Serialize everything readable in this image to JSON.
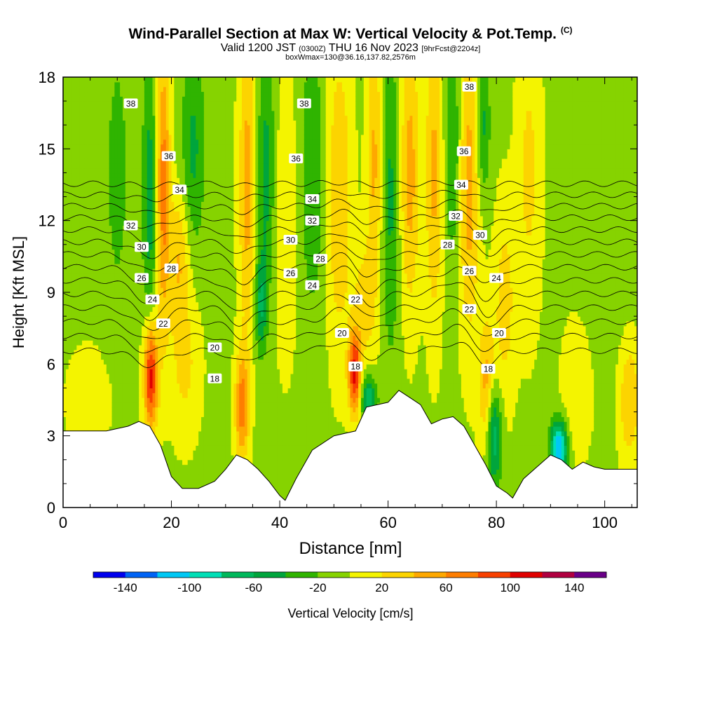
{
  "title": {
    "main": "Wind-Parallel Section at Max W: Vertical Velocity & Pot.Temp.",
    "main_units": "(C)",
    "valid_prefix": "Valid 1200 JST",
    "valid_utc": "(0300Z)",
    "valid_suffix": "THU 16 Nov 2023",
    "forecast": "[9hrFcst@2204z]",
    "box": "boxWmax=130@36.16,137.82,2576m"
  },
  "chart_data": {
    "type": "heatmap",
    "xlabel": "Distance [nm]",
    "ylabel": "Height [Kft MSL]",
    "xlim": [
      0,
      106
    ],
    "ylim": [
      0,
      18
    ],
    "x_ticks": [
      0,
      20,
      40,
      60,
      80,
      100
    ],
    "y_ticks": [
      0,
      3,
      6,
      9,
      12,
      15,
      18
    ],
    "colorbar": {
      "label": "Vertical Velocity [cm/s]",
      "tick_labels": [
        "-140",
        "-100",
        "-60",
        "-20",
        "20",
        "60",
        "100",
        "140"
      ],
      "bins": [
        -160,
        -140,
        -120,
        -100,
        -80,
        -60,
        -40,
        -20,
        0,
        20,
        40,
        60,
        80,
        100,
        120,
        140,
        160
      ],
      "colors": [
        "#0000ee",
        "#0063f5",
        "#00c8f5",
        "#00dfb6",
        "#00b85b",
        "#00a53c",
        "#2fb400",
        "#86d300",
        "#f4f400",
        "#fcd400",
        "#fea800",
        "#fe7d00",
        "#f84000",
        "#e00000",
        "#b00040",
        "#6a0088"
      ]
    },
    "terrain_kft": [
      [
        0,
        3.2
      ],
      [
        4,
        3.2
      ],
      [
        8,
        3.2
      ],
      [
        12,
        3.4
      ],
      [
        14,
        3.6
      ],
      [
        16,
        3.4
      ],
      [
        18,
        2.6
      ],
      [
        20,
        1.3
      ],
      [
        22,
        0.8
      ],
      [
        25,
        0.8
      ],
      [
        28,
        1.1
      ],
      [
        30,
        1.6
      ],
      [
        32,
        2.2
      ],
      [
        34,
        2.0
      ],
      [
        36,
        1.6
      ],
      [
        38,
        1.1
      ],
      [
        40,
        0.5
      ],
      [
        41,
        0.3
      ],
      [
        43,
        1.2
      ],
      [
        46,
        2.4
      ],
      [
        50,
        3.0
      ],
      [
        54,
        3.2
      ],
      [
        56,
        4.2
      ],
      [
        60,
        4.4
      ],
      [
        62,
        4.9
      ],
      [
        64,
        4.6
      ],
      [
        66,
        4.3
      ],
      [
        68,
        3.5
      ],
      [
        70,
        3.7
      ],
      [
        72,
        3.8
      ],
      [
        74,
        3.4
      ],
      [
        76,
        2.6
      ],
      [
        78,
        1.8
      ],
      [
        80,
        0.9
      ],
      [
        82,
        0.6
      ],
      [
        83,
        0.4
      ],
      [
        85,
        1.2
      ],
      [
        88,
        1.8
      ],
      [
        90,
        2.2
      ],
      [
        92,
        2.0
      ],
      [
        94,
        1.6
      ],
      [
        96,
        1.9
      ],
      [
        98,
        1.7
      ],
      [
        100,
        1.6
      ],
      [
        102,
        1.6
      ],
      [
        106,
        1.6
      ]
    ],
    "w_background_cm_s": -5,
    "w_features": [
      {
        "x": 16.2,
        "z": 5.5,
        "sx": 0.9,
        "sz": 1.6,
        "amp": 120
      },
      {
        "x": 18.5,
        "z": 13.5,
        "sx": 0.9,
        "sz": 4.2,
        "amp": 75
      },
      {
        "x": 16.0,
        "z": 13.0,
        "sx": 0.9,
        "sz": 4.5,
        "amp": -45
      },
      {
        "x": 21.5,
        "z": 10.5,
        "sx": 1.3,
        "sz": 2.0,
        "amp": 45
      },
      {
        "x": 22.5,
        "z": 6.0,
        "sx": 2.0,
        "sz": 2.2,
        "amp": 30
      },
      {
        "x": 24.0,
        "z": 15.0,
        "sx": 1.5,
        "sz": 3.0,
        "amp": -40
      },
      {
        "x": 33.0,
        "z": 4.2,
        "sx": 0.9,
        "sz": 1.6,
        "amp": 75
      },
      {
        "x": 34.0,
        "z": 13.5,
        "sx": 1.1,
        "sz": 4.5,
        "amp": 55
      },
      {
        "x": 37.5,
        "z": 14.0,
        "sx": 1.2,
        "sz": 3.5,
        "amp": -45
      },
      {
        "x": 36.5,
        "z": 8.5,
        "sx": 0.8,
        "sz": 1.4,
        "amp": -55
      },
      {
        "x": 41.0,
        "z": 12.0,
        "sx": 1.6,
        "sz": 4.0,
        "amp": 25
      },
      {
        "x": 46.0,
        "z": 14.0,
        "sx": 1.5,
        "sz": 4.0,
        "amp": -35
      },
      {
        "x": 51.0,
        "z": 13.0,
        "sx": 1.6,
        "sz": 4.5,
        "amp": 45
      },
      {
        "x": 53.8,
        "z": 5.6,
        "sx": 0.8,
        "sz": 1.2,
        "amp": 110
      },
      {
        "x": 55.5,
        "z": 8.5,
        "sx": 1.4,
        "sz": 1.8,
        "amp": 35
      },
      {
        "x": 56.5,
        "z": 4.5,
        "sx": 1.0,
        "sz": 0.7,
        "amp": -75
      },
      {
        "x": 57.5,
        "z": 14.5,
        "sx": 1.0,
        "sz": 4.0,
        "amp": 50
      },
      {
        "x": 60.5,
        "z": 13.0,
        "sx": 1.2,
        "sz": 4.5,
        "amp": -40
      },
      {
        "x": 64.0,
        "z": 14.0,
        "sx": 1.3,
        "sz": 4.0,
        "amp": 55
      },
      {
        "x": 68.5,
        "z": 14.0,
        "sx": 1.1,
        "sz": 4.5,
        "amp": 50
      },
      {
        "x": 72.0,
        "z": 15.0,
        "sx": 1.0,
        "sz": 3.5,
        "amp": -40
      },
      {
        "x": 75.0,
        "z": 13.5,
        "sx": 1.4,
        "sz": 4.5,
        "amp": 55
      },
      {
        "x": 77.5,
        "z": 16.0,
        "sx": 0.9,
        "sz": 2.2,
        "amp": -45
      },
      {
        "x": 79.5,
        "z": 3.0,
        "sx": 1.0,
        "sz": 1.5,
        "amp": -75
      },
      {
        "x": 78.2,
        "z": 5.0,
        "sx": 1.0,
        "sz": 2.0,
        "amp": 55
      },
      {
        "x": 81.5,
        "z": 8.5,
        "sx": 1.4,
        "sz": 3.0,
        "amp": 35
      },
      {
        "x": 86.0,
        "z": 14.0,
        "sx": 1.6,
        "sz": 4.5,
        "amp": 30
      },
      {
        "x": 91.5,
        "z": 2.5,
        "sx": 1.1,
        "sz": 0.8,
        "amp": -120
      },
      {
        "x": 95.0,
        "z": 5.0,
        "sx": 2.0,
        "sz": 2.0,
        "amp": 25
      },
      {
        "x": 104.5,
        "z": 4.5,
        "sx": 1.4,
        "sz": 1.8,
        "amp": 45
      },
      {
        "x": 5.0,
        "z": 4.5,
        "sx": 3.0,
        "sz": 1.5,
        "amp": 20
      },
      {
        "x": 10.0,
        "z": 14.0,
        "sx": 2.0,
        "sz": 5.0,
        "amp": -20
      },
      {
        "x": 100.0,
        "z": 13.0,
        "sx": 3.0,
        "sz": 5.0,
        "amp": -15
      }
    ],
    "theta_contours_c": [
      14,
      16,
      18,
      20,
      22,
      24,
      26,
      28,
      30,
      32,
      34,
      36,
      38,
      40
    ],
    "theta_labels": [
      {
        "text": "38",
        "x": 12.5,
        "z": 16.9
      },
      {
        "text": "36",
        "x": 19.5,
        "z": 14.7
      },
      {
        "text": "34",
        "x": 21.5,
        "z": 13.3
      },
      {
        "text": "32",
        "x": 12.5,
        "z": 11.8
      },
      {
        "text": "30",
        "x": 14.5,
        "z": 10.9
      },
      {
        "text": "28",
        "x": 20.0,
        "z": 10.0
      },
      {
        "text": "26",
        "x": 14.5,
        "z": 9.6
      },
      {
        "text": "24",
        "x": 16.5,
        "z": 8.7
      },
      {
        "text": "22",
        "x": 18.5,
        "z": 7.7
      },
      {
        "text": "20",
        "x": 28.0,
        "z": 6.7
      },
      {
        "text": "18",
        "x": 28.0,
        "z": 5.4
      },
      {
        "text": "38",
        "x": 44.5,
        "z": 16.9
      },
      {
        "text": "36",
        "x": 43.0,
        "z": 14.6
      },
      {
        "text": "34",
        "x": 46.0,
        "z": 12.9
      },
      {
        "text": "32",
        "x": 46.0,
        "z": 12.0
      },
      {
        "text": "30",
        "x": 42.0,
        "z": 11.2
      },
      {
        "text": "28",
        "x": 47.5,
        "z": 10.4
      },
      {
        "text": "26",
        "x": 42.0,
        "z": 9.8
      },
      {
        "text": "24",
        "x": 46.0,
        "z": 9.3
      },
      {
        "text": "22",
        "x": 54.0,
        "z": 8.7
      },
      {
        "text": "20",
        "x": 51.5,
        "z": 7.3
      },
      {
        "text": "18",
        "x": 54.0,
        "z": 5.9
      },
      {
        "text": "38",
        "x": 75.0,
        "z": 17.6
      },
      {
        "text": "36",
        "x": 74.0,
        "z": 14.9
      },
      {
        "text": "34",
        "x": 73.5,
        "z": 13.5
      },
      {
        "text": "32",
        "x": 72.5,
        "z": 12.2
      },
      {
        "text": "30",
        "x": 77.0,
        "z": 11.4
      },
      {
        "text": "28",
        "x": 71.0,
        "z": 11.0
      },
      {
        "text": "26",
        "x": 75.0,
        "z": 9.9
      },
      {
        "text": "24",
        "x": 80.0,
        "z": 9.6
      },
      {
        "text": "22",
        "x": 75.0,
        "z": 8.3
      },
      {
        "text": "20",
        "x": 80.5,
        "z": 7.3
      },
      {
        "text": "18",
        "x": 78.5,
        "z": 5.8
      }
    ]
  }
}
